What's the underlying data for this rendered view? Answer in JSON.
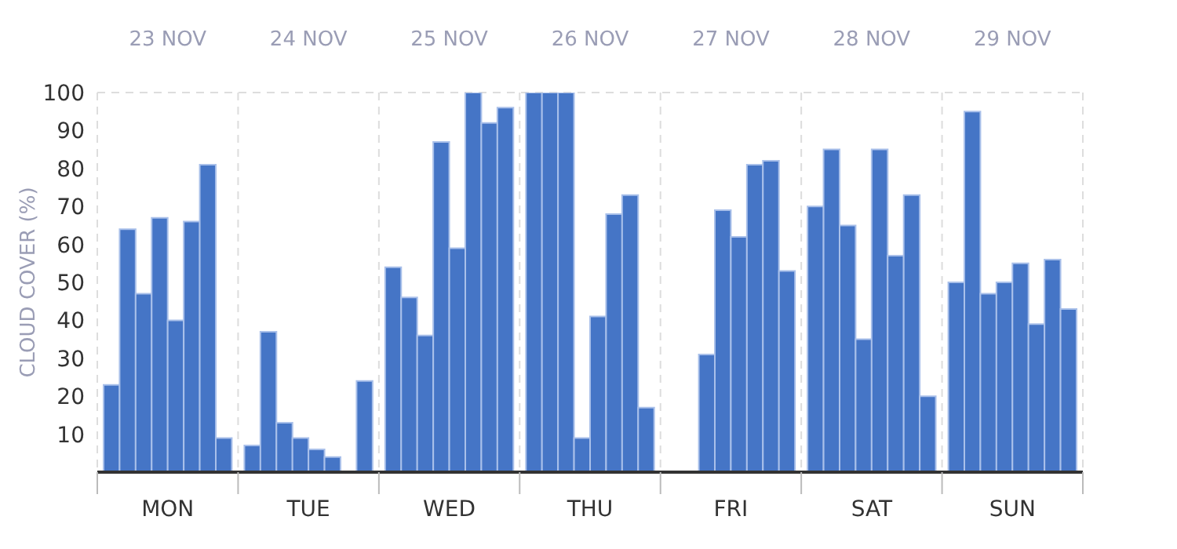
{
  "chart_data": {
    "type": "bar",
    "ylabel": "CLOUD COVER (%)",
    "categories": [
      "MON",
      "TUE",
      "WED",
      "THU",
      "FRI",
      "SAT",
      "SUN"
    ],
    "series": [
      {
        "color": "#4575c6",
        "values": [
          23,
          7,
          54,
          100,
          null,
          70,
          50
        ]
      },
      {
        "color": "#4575c6",
        "values": [
          64,
          37,
          46,
          100,
          null,
          85,
          95
        ]
      },
      {
        "color": "#4575c6",
        "values": [
          47,
          13,
          36,
          100,
          31,
          65,
          47
        ]
      },
      {
        "color": "#4575c6",
        "values": [
          67,
          9,
          87,
          9,
          69,
          35,
          50
        ]
      },
      {
        "color": "#4575c6",
        "values": [
          40,
          6,
          59,
          41,
          62,
          85,
          55
        ]
      },
      {
        "color": "#4575c6",
        "values": [
          66,
          4,
          100,
          68,
          81,
          57,
          39
        ]
      },
      {
        "color": "#4575c6",
        "values": [
          81,
          null,
          92,
          73,
          82,
          73,
          56
        ]
      },
      {
        "color": "#4575c6",
        "values": [
          9,
          24,
          96,
          17,
          53,
          20,
          43
        ]
      }
    ],
    "annotations": [
      "23 NOV",
      "24 NOV",
      "25 NOV",
      "26 NOV",
      "27 NOV",
      "28 NOV",
      "29 NOV"
    ],
    "ylim": [
      0,
      100
    ],
    "yticks": [
      10,
      20,
      30,
      40,
      50,
      60,
      70,
      80,
      90,
      100
    ],
    "grid": true,
    "legend": false
  }
}
